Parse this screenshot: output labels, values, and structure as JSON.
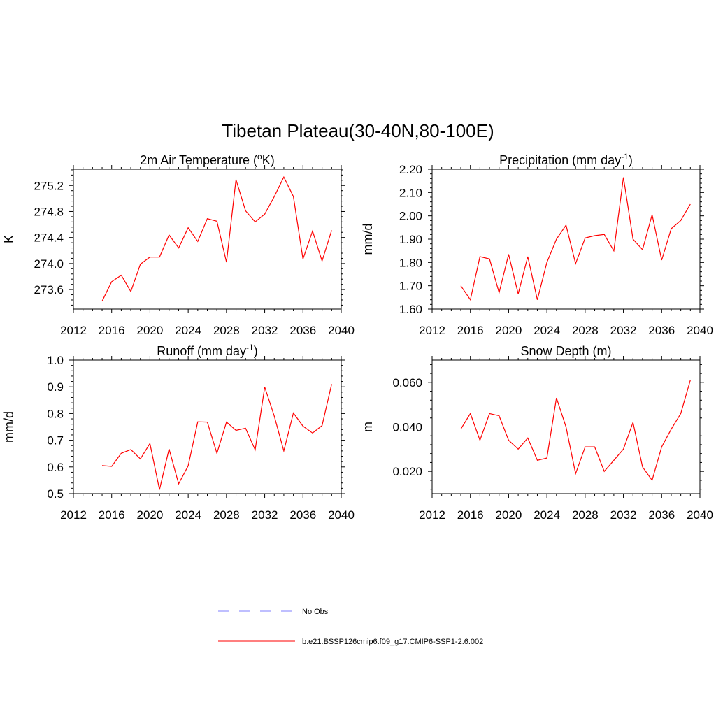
{
  "figure": {
    "title": "Tibetan Plateau(30-40N,80-100E)"
  },
  "legend": {
    "items": [
      {
        "label": "No Obs",
        "color": "#9999ff",
        "dashed": true
      },
      {
        "label": "b.e21.BSSP126cmip6.f09_g17.CMIP6-SSP1-2.6.002",
        "color": "#ff3333",
        "dashed": false
      }
    ]
  },
  "chart_data": [
    {
      "type": "line",
      "title_parts": [
        "2m Air Temperature (",
        "o",
        "K)"
      ],
      "title_style": "sup",
      "ylabel": "K",
      "xlim": [
        2012,
        2040
      ],
      "ylim": [
        273.3,
        275.45
      ],
      "xticks": [
        2012,
        2016,
        2020,
        2024,
        2028,
        2032,
        2036,
        2040
      ],
      "yticks": [
        273.6,
        274.0,
        274.4,
        274.8,
        275.2
      ],
      "ytick_labels": [
        "273.6",
        "274.0",
        "274.4",
        "274.8",
        "275.2"
      ],
      "series": [
        {
          "color": "#ff0000",
          "x": [
            2015,
            2016,
            2017,
            2018,
            2019,
            2020,
            2021,
            2022,
            2023,
            2024,
            2025,
            2026,
            2027,
            2028,
            2029,
            2030,
            2031,
            2032,
            2033,
            2034,
            2035,
            2036,
            2037,
            2038,
            2039
          ],
          "y": [
            273.42,
            273.72,
            273.82,
            273.57,
            273.99,
            274.1,
            274.1,
            274.44,
            274.24,
            274.55,
            274.34,
            274.69,
            274.65,
            274.02,
            275.29,
            274.81,
            274.64,
            274.76,
            275.03,
            275.33,
            275.03,
            274.07,
            274.5,
            274.04,
            274.51
          ]
        }
      ]
    },
    {
      "type": "line",
      "title_parts": [
        "Precipitation (mm day",
        "-1",
        ")"
      ],
      "title_style": "sup",
      "ylabel": "mm/d",
      "xlim": [
        2012,
        2040
      ],
      "ylim": [
        1.6,
        2.2
      ],
      "xticks": [
        2012,
        2016,
        2020,
        2024,
        2028,
        2032,
        2036,
        2040
      ],
      "yticks": [
        1.6,
        1.7,
        1.8,
        1.9,
        2.0,
        2.1,
        2.2
      ],
      "ytick_labels": [
        "1.60",
        "1.70",
        "1.80",
        "1.90",
        "2.00",
        "2.10",
        "2.20"
      ],
      "series": [
        {
          "color": "#ff0000",
          "x": [
            2015,
            2016,
            2017,
            2018,
            2019,
            2020,
            2021,
            2022,
            2023,
            2024,
            2025,
            2026,
            2027,
            2028,
            2029,
            2030,
            2031,
            2032,
            2033,
            2034,
            2035,
            2036,
            2037,
            2038,
            2039
          ],
          "y": [
            1.7,
            1.64,
            1.825,
            1.815,
            1.67,
            1.835,
            1.665,
            1.825,
            1.64,
            1.8,
            1.9,
            1.96,
            1.795,
            1.905,
            1.915,
            1.92,
            1.85,
            2.165,
            1.9,
            1.855,
            2.005,
            1.81,
            1.945,
            1.98,
            2.05
          ]
        }
      ]
    },
    {
      "type": "line",
      "title_parts": [
        "Runoff (mm day",
        "-1",
        ")"
      ],
      "title_style": "sup",
      "ylabel": "mm/d",
      "xlim": [
        2012,
        2040
      ],
      "ylim": [
        0.5,
        1.0
      ],
      "xticks": [
        2012,
        2016,
        2020,
        2024,
        2028,
        2032,
        2036,
        2040
      ],
      "yticks": [
        0.5,
        0.6,
        0.7,
        0.8,
        0.9,
        1.0
      ],
      "ytick_labels": [
        "0.5",
        "0.6",
        "0.7",
        "0.8",
        "0.9",
        "1.0"
      ],
      "series": [
        {
          "color": "#ff0000",
          "x": [
            2015,
            2016,
            2017,
            2018,
            2019,
            2020,
            2021,
            2022,
            2023,
            2024,
            2025,
            2026,
            2027,
            2028,
            2029,
            2030,
            2031,
            2032,
            2033,
            2034,
            2035,
            2036,
            2037,
            2038,
            2039
          ],
          "y": [
            0.605,
            0.602,
            0.651,
            0.665,
            0.63,
            0.688,
            0.515,
            0.667,
            0.537,
            0.604,
            0.769,
            0.768,
            0.651,
            0.768,
            0.737,
            0.745,
            0.664,
            0.899,
            0.79,
            0.66,
            0.802,
            0.753,
            0.727,
            0.755,
            0.91
          ]
        }
      ]
    },
    {
      "type": "line",
      "title_parts": [
        "Snow Depth (m)"
      ],
      "title_style": "plain",
      "ylabel": "m",
      "xlim": [
        2012,
        2040
      ],
      "ylim": [
        0.01,
        0.07
      ],
      "xticks": [
        2012,
        2016,
        2020,
        2024,
        2028,
        2032,
        2036,
        2040
      ],
      "yticks": [
        0.02,
        0.04,
        0.06
      ],
      "ytick_labels": [
        "0.020",
        "0.040",
        "0.060"
      ],
      "series": [
        {
          "color": "#ff0000",
          "x": [
            2015,
            2016,
            2017,
            2018,
            2019,
            2020,
            2021,
            2022,
            2023,
            2024,
            2025,
            2026,
            2027,
            2028,
            2029,
            2030,
            2031,
            2032,
            2033,
            2034,
            2035,
            2036,
            2037,
            2038,
            2039
          ],
          "y": [
            0.039,
            0.046,
            0.034,
            0.046,
            0.045,
            0.034,
            0.03,
            0.035,
            0.025,
            0.026,
            0.053,
            0.04,
            0.019,
            0.031,
            0.031,
            0.02,
            0.025,
            0.03,
            0.042,
            0.022,
            0.016,
            0.031,
            0.039,
            0.046,
            0.061
          ]
        }
      ]
    }
  ]
}
